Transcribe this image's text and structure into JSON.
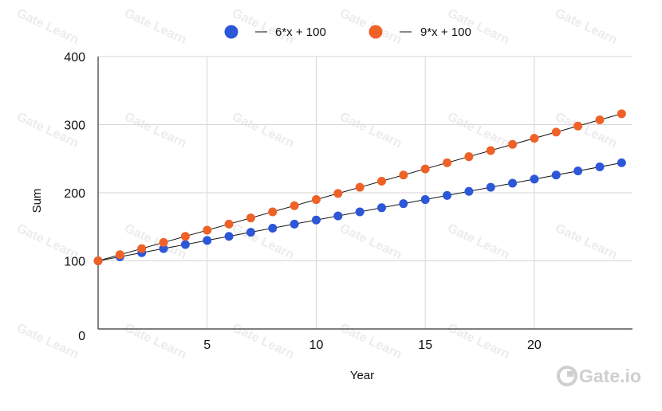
{
  "brand": {
    "logo_text": "Gate.io",
    "watermark_text": "Gate Learn"
  },
  "colors": {
    "series1": "#2c57d8",
    "series2": "#ef6126",
    "trend": "#111111",
    "grid": "#d6d6d6",
    "axis": "#333333"
  },
  "chart_data": {
    "type": "scatter",
    "title": "",
    "xlabel": "Year",
    "ylabel": "Sum",
    "xlim": [
      0,
      24.5
    ],
    "ylim": [
      0,
      400
    ],
    "xticks": [
      5,
      10,
      15,
      20
    ],
    "yticks": [
      0,
      100,
      200,
      300,
      400
    ],
    "grid": true,
    "legend_position": "top-center",
    "series": [
      {
        "name": "6*x + 100",
        "trendline": true,
        "x": [
          0,
          1,
          2,
          3,
          4,
          5,
          6,
          7,
          8,
          9,
          10,
          11,
          12,
          13,
          14,
          15,
          16,
          17,
          18,
          19,
          20,
          21,
          22,
          23,
          24
        ],
        "y": [
          100,
          106,
          112,
          118,
          124,
          130,
          136,
          142,
          148,
          154,
          160,
          166,
          172,
          178,
          184,
          190,
          196,
          202,
          208,
          214,
          220,
          226,
          232,
          238,
          244
        ]
      },
      {
        "name": "9*x + 100",
        "trendline": true,
        "x": [
          0,
          1,
          2,
          3,
          4,
          5,
          6,
          7,
          8,
          9,
          10,
          11,
          12,
          13,
          14,
          15,
          16,
          17,
          18,
          19,
          20,
          21,
          22,
          23,
          24
        ],
        "y": [
          100,
          109,
          118,
          127,
          136,
          145,
          154,
          163,
          172,
          181,
          190,
          199,
          208,
          217,
          226,
          235,
          244,
          253,
          262,
          271,
          280,
          289,
          298,
          307,
          316
        ]
      }
    ]
  }
}
